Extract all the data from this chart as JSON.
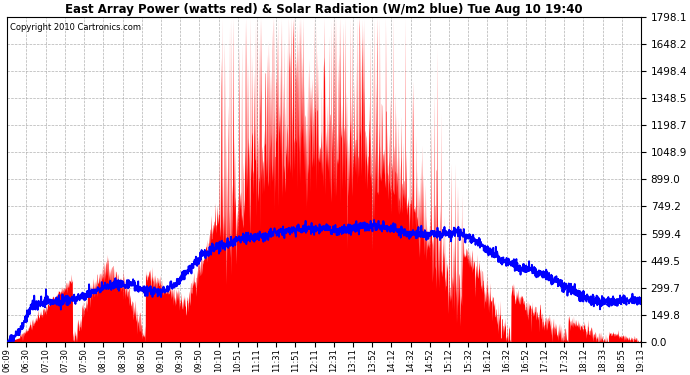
{
  "title": "East Array Power (watts red) & Solar Radiation (W/m2 blue) Tue Aug 10 19:40",
  "copyright": "Copyright 2010 Cartronics.com",
  "x_labels": [
    "06:09",
    "06:30",
    "07:10",
    "07:30",
    "07:50",
    "08:10",
    "08:30",
    "08:50",
    "09:10",
    "09:30",
    "09:50",
    "10:10",
    "10:51",
    "11:11",
    "11:31",
    "11:51",
    "12:11",
    "12:31",
    "13:11",
    "13:52",
    "14:12",
    "14:32",
    "14:52",
    "15:12",
    "15:32",
    "16:12",
    "16:32",
    "16:52",
    "17:12",
    "17:32",
    "18:12",
    "18:33",
    "18:55",
    "19:13"
  ],
  "y_ticks": [
    0.0,
    149.8,
    299.7,
    449.5,
    599.4,
    749.2,
    899.0,
    1048.9,
    1198.7,
    1348.5,
    1498.4,
    1648.2,
    1798.1
  ],
  "y_max": 1798.1,
  "background_color": "#ffffff",
  "red_color": "#ff0000",
  "blue_color": "#0000ff",
  "grid_color": "#aaaaaa"
}
